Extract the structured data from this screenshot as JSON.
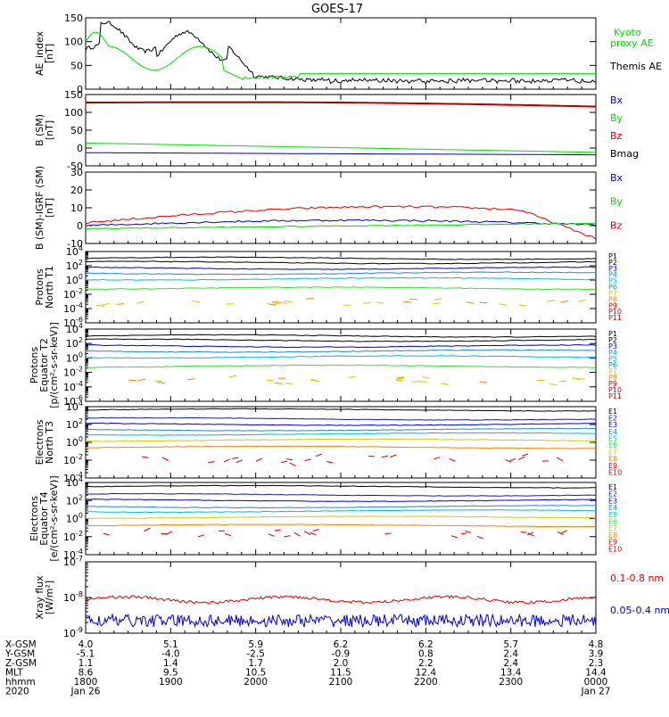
{
  "title": "GOES-17",
  "colors": {
    "black": "#000000",
    "green": "#00dd00",
    "red": "#dd0000",
    "darkred": "#8b0000",
    "blue": "#0000c8",
    "navy": "#1a1aaa",
    "cyan": "#00bcd4",
    "teal": "#00a0a0",
    "lime": "#33dd33",
    "yellow": "#cccc00",
    "orange": "#ee8800",
    "crimson": "#cc0000"
  },
  "chart_data": [
    {
      "type": "line",
      "ylabel": "AE_index [nT]",
      "ylim": [
        0,
        150
      ],
      "log": false,
      "yticks": [
        "0",
        "50",
        "100",
        "150"
      ],
      "legend": [
        {
          "name": "Kyoto proxy AE",
          "lines": [
            "Kyoto",
            "proxy AE"
          ],
          "color": "#00dd00"
        },
        {
          "name": "Themis AE",
          "lines": [
            "Themis AE"
          ],
          "color": "#000000"
        }
      ]
    },
    {
      "type": "line",
      "ylabel": "B (SM) [nT]",
      "ylim": [
        -50,
        150
      ],
      "log": false,
      "yticks": [
        "-50",
        "0",
        "50",
        "100",
        "150"
      ],
      "legend": [
        {
          "name": "Bx",
          "lines": [
            "Bx"
          ],
          "color": "#0000c8"
        },
        {
          "name": "By",
          "lines": [
            "By"
          ],
          "color": "#00dd00"
        },
        {
          "name": "Bz",
          "lines": [
            "Bz"
          ],
          "color": "#dd0000"
        },
        {
          "name": "Bmag",
          "lines": [
            "Bmag"
          ],
          "color": "#000000"
        }
      ]
    },
    {
      "type": "line",
      "ylabel": "B (SM)-IGRF (SM) [nT]",
      "ylim": [
        -10,
        30
      ],
      "log": false,
      "yticks": [
        "-10",
        "0",
        "10",
        "20",
        "30"
      ],
      "legend": [
        {
          "name": "Bx",
          "lines": [
            "Bx"
          ],
          "color": "#0000c8"
        },
        {
          "name": "By",
          "lines": [
            "By"
          ],
          "color": "#00dd00"
        },
        {
          "name": "Bz",
          "lines": [
            "Bz"
          ],
          "color": "#dd0000"
        }
      ]
    },
    {
      "type": "line",
      "ylabel": "Protons North T1",
      "ylim": [
        -6,
        4
      ],
      "log": true,
      "yticks": [
        "10-6",
        "10-4",
        "10-2",
        "100",
        "102",
        "104"
      ],
      "legend": [
        {
          "name": "P1",
          "lines": [
            "P1"
          ],
          "color": "#000000"
        },
        {
          "name": "P2",
          "lines": [
            "P2"
          ],
          "color": "#000000"
        },
        {
          "name": "P3",
          "lines": [
            "P3"
          ],
          "color": "#0000c8"
        },
        {
          "name": "P4",
          "lines": [
            "P4"
          ],
          "color": "#1a8ae0"
        },
        {
          "name": "P5",
          "lines": [
            "P5"
          ],
          "color": "#00bcd4"
        },
        {
          "name": "P6",
          "lines": [
            "P6"
          ],
          "color": "#00a0a0"
        },
        {
          "name": "P7",
          "lines": [
            "P7"
          ],
          "color": "#cccc00"
        },
        {
          "name": "P8",
          "lines": [
            "P8"
          ],
          "color": "#ee8800"
        },
        {
          "name": "P9",
          "lines": [
            "P9"
          ],
          "color": "#cc0000"
        },
        {
          "name": "P10",
          "lines": [
            "P10"
          ],
          "color": "#cc0000"
        },
        {
          "name": "P11",
          "lines": [
            "P11"
          ],
          "color": "#cc0000"
        }
      ]
    },
    {
      "type": "line",
      "ylabel": "Protons Equator T2 [p/(cm²-s-sr-keV)]",
      "ylim": [
        -6,
        4
      ],
      "log": true,
      "yticks": [
        "10-6",
        "10-4",
        "10-2",
        "100",
        "102",
        "104"
      ],
      "legend": [
        {
          "name": "P1",
          "lines": [
            "P1"
          ],
          "color": "#000000"
        },
        {
          "name": "P2",
          "lines": [
            "P2"
          ],
          "color": "#000000"
        },
        {
          "name": "P3",
          "lines": [
            "P3"
          ],
          "color": "#0000c8"
        },
        {
          "name": "P4",
          "lines": [
            "P4"
          ],
          "color": "#1a8ae0"
        },
        {
          "name": "P5",
          "lines": [
            "P5"
          ],
          "color": "#00bcd4"
        },
        {
          "name": "P6",
          "lines": [
            "P6"
          ],
          "color": "#00a0a0"
        },
        {
          "name": "P7",
          "lines": [
            "P7"
          ],
          "color": "#cccc00"
        },
        {
          "name": "P8",
          "lines": [
            "P8"
          ],
          "color": "#ee8800"
        },
        {
          "name": "P9",
          "lines": [
            "P9"
          ],
          "color": "#cc0000"
        },
        {
          "name": "P10",
          "lines": [
            "P10"
          ],
          "color": "#cc0000"
        },
        {
          "name": "P11",
          "lines": [
            "P11"
          ],
          "color": "#cc0000"
        }
      ]
    },
    {
      "type": "line",
      "ylabel": "Electrons North T3",
      "ylim": [
        -4,
        4
      ],
      "log": true,
      "yticks": [
        "10-4",
        "10-2",
        "100",
        "102",
        "104"
      ],
      "legend": [
        {
          "name": "E1",
          "lines": [
            "E1"
          ],
          "color": "#000000"
        },
        {
          "name": "E2",
          "lines": [
            "E2"
          ],
          "color": "#1a1aaa"
        },
        {
          "name": "E3",
          "lines": [
            "E3"
          ],
          "color": "#0000c8"
        },
        {
          "name": "E4",
          "lines": [
            "E4"
          ],
          "color": "#1a8ae0"
        },
        {
          "name": "E5",
          "lines": [
            "E5"
          ],
          "color": "#00bcd4"
        },
        {
          "name": "E6",
          "lines": [
            "E6"
          ],
          "color": "#33dd33"
        },
        {
          "name": "E7",
          "lines": [
            "E7"
          ],
          "color": "#cccc00"
        },
        {
          "name": "E8",
          "lines": [
            "E8"
          ],
          "color": "#ee8800"
        },
        {
          "name": "E9",
          "lines": [
            "E9"
          ],
          "color": "#cc0000"
        },
        {
          "name": "E10",
          "lines": [
            "E10"
          ],
          "color": "#cc0000"
        }
      ]
    },
    {
      "type": "line",
      "ylabel": "Electrons Equator T4 [e/(cm²-s-sr-keV)]",
      "ylim": [
        -4,
        4
      ],
      "log": true,
      "yticks": [
        "10-4",
        "10-2",
        "100",
        "102",
        "104"
      ],
      "legend": [
        {
          "name": "E1",
          "lines": [
            "E1"
          ],
          "color": "#000000"
        },
        {
          "name": "E2",
          "lines": [
            "E2"
          ],
          "color": "#1a1aaa"
        },
        {
          "name": "E3",
          "lines": [
            "E3"
          ],
          "color": "#0000c8"
        },
        {
          "name": "E4",
          "lines": [
            "E4"
          ],
          "color": "#1a8ae0"
        },
        {
          "name": "E5",
          "lines": [
            "E5"
          ],
          "color": "#00bcd4"
        },
        {
          "name": "E6",
          "lines": [
            "E6"
          ],
          "color": "#33dd33"
        },
        {
          "name": "E7",
          "lines": [
            "E7"
          ],
          "color": "#cccc00"
        },
        {
          "name": "E8",
          "lines": [
            "E8"
          ],
          "color": "#ee8800"
        },
        {
          "name": "E9",
          "lines": [
            "E9"
          ],
          "color": "#cc0000"
        },
        {
          "name": "E10",
          "lines": [
            "E10"
          ],
          "color": "#cc0000"
        }
      ]
    },
    {
      "type": "line",
      "ylabel": "Xray flux [W/m²]",
      "ylim": [
        -9,
        -7
      ],
      "log": true,
      "yticks": [
        "10-9",
        "10-8",
        "10-7"
      ],
      "legend": [
        {
          "name": "0.1-0.8 nm",
          "lines": [
            "0.1-0.8 nm"
          ],
          "color": "#dd0000"
        },
        {
          "name": "0.05-0.4 nm",
          "lines": [
            "0.05-0.4 nm"
          ],
          "color": "#0000c8"
        }
      ]
    }
  ],
  "x_axis": {
    "ticks": [
      {
        "xgsm": "4.0",
        "ygsm": "-5.1",
        "zgsm": "1.1",
        "mlt": "8.6",
        "hhmm": "1800",
        "date": "Jan 26"
      },
      {
        "xgsm": "5.1",
        "ygsm": "-4.0",
        "zgsm": "1.4",
        "mlt": "9.5",
        "hhmm": "1900",
        "date": ""
      },
      {
        "xgsm": "5.9",
        "ygsm": "-2.5",
        "zgsm": "1.7",
        "mlt": "10.5",
        "hhmm": "2000",
        "date": ""
      },
      {
        "xgsm": "6.2",
        "ygsm": "-0.9",
        "zgsm": "2.0",
        "mlt": "11.5",
        "hhmm": "2100",
        "date": ""
      },
      {
        "xgsm": "6.2",
        "ygsm": "0.8",
        "zgsm": "2.2",
        "mlt": "12.4",
        "hhmm": "2200",
        "date": ""
      },
      {
        "xgsm": "5.7",
        "ygsm": "2.4",
        "zgsm": "2.4",
        "mlt": "13.4",
        "hhmm": "2300",
        "date": ""
      },
      {
        "xgsm": "4.8",
        "ygsm": "3.9",
        "zgsm": "2.3",
        "mlt": "14.4",
        "hhmm": "0000",
        "date": "Jan 27"
      }
    ],
    "row_labels": {
      "xgsm": "X-GSM",
      "ygsm": "Y-GSM",
      "zgsm": "Z-GSM",
      "mlt": "MLT",
      "hhmm": "hhmm",
      "year": "2020"
    }
  }
}
